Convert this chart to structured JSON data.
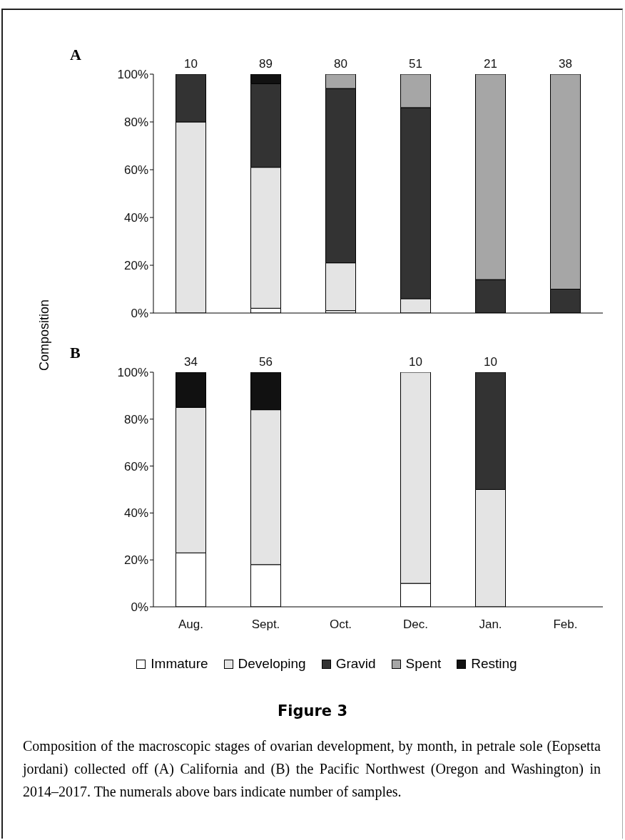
{
  "chart_data": [
    {
      "type": "bar",
      "title": "A",
      "ylabel": "Composition",
      "stacked": true,
      "categories": [
        "Aug.",
        "Sept.",
        "Oct.",
        "Dec.",
        "Jan.",
        "Feb."
      ],
      "tick_labels": "y",
      "grid": false,
      "ylim": [
        0,
        100
      ],
      "yticks": [
        {
          "value": 0,
          "label": "0%"
        },
        {
          "value": 20,
          "label": "20%"
        },
        {
          "value": 40,
          "label": "40%"
        },
        {
          "value": 60,
          "label": "60%"
        },
        {
          "value": 80,
          "label": "80%"
        },
        {
          "value": 100,
          "label": "100%"
        }
      ],
      "annotations": [
        {
          "text": "10",
          "x": "Aug.",
          "y": 100
        },
        {
          "text": "89",
          "x": "Sept.",
          "y": 100
        },
        {
          "text": "80",
          "x": "Oct.",
          "y": 100
        },
        {
          "text": "51",
          "x": "Dec.",
          "y": 100
        },
        {
          "text": "21",
          "x": "Jan.",
          "y": 100
        },
        {
          "text": "38",
          "x": "Feb.",
          "y": 100
        }
      ],
      "series": [
        {
          "color": "#ffffff",
          "values": [
            0,
            2,
            1,
            0,
            0,
            0
          ]
        },
        {
          "color": "#e4e4e4",
          "values": [
            80,
            59,
            20,
            6,
            0,
            0
          ]
        },
        {
          "color": "#333333",
          "values": [
            20,
            35,
            73,
            80,
            14,
            10
          ]
        },
        {
          "color": "#a6a6a6",
          "values": [
            0,
            0,
            6,
            14,
            86,
            90
          ]
        },
        {
          "color": "#111111",
          "values": [
            0,
            4,
            0,
            0,
            0,
            0
          ]
        }
      ]
    },
    {
      "type": "bar",
      "title": "B",
      "stacked": true,
      "categories": [
        "Aug.",
        "Sept.",
        "Oct.",
        "Dec.",
        "Jan.",
        "Feb."
      ],
      "grid": false,
      "legend": "bottom",
      "ylim": [
        0,
        100
      ],
      "yticks": [
        {
          "value": 0,
          "label": "0%"
        },
        {
          "value": 20,
          "label": "20%"
        },
        {
          "value": 40,
          "label": "40%"
        },
        {
          "value": 60,
          "label": "60%"
        },
        {
          "value": 80,
          "label": "80%"
        },
        {
          "value": 100,
          "label": "100%"
        }
      ],
      "annotations": [
        {
          "text": "34",
          "x": "Aug.",
          "y": 100
        },
        {
          "text": "56",
          "x": "Sept.",
          "y": 100
        },
        {
          "text": "10",
          "x": "Dec.",
          "y": 100
        },
        {
          "text": "10",
          "x": "Jan.",
          "y": 100
        },
        "Figure 3",
        "Composition of the macroscopic stages of ovarian development, by month, in petrale sole (Eopsetta jordani) collected off (A) California and (B) the Pacific Northwest (Oregon and Washington) in 2014–2017. The numerals above bars indicate number of samples."
      ],
      "series": [
        {
          "name": "Immature",
          "color": "#ffffff",
          "values": [
            23,
            18,
            null,
            10,
            0,
            null
          ]
        },
        {
          "name": "Developing",
          "color": "#e4e4e4",
          "values": [
            62,
            66,
            null,
            90,
            50,
            null
          ]
        },
        {
          "name": "Gravid",
          "color": "#333333",
          "values": [
            0,
            0,
            null,
            0,
            50,
            null
          ]
        },
        {
          "name": "Spent",
          "color": "#a6a6a6",
          "values": [
            0,
            0,
            null,
            0,
            0,
            null
          ]
        },
        {
          "name": "Resting",
          "color": "#111111",
          "values": [
            15,
            16,
            null,
            0,
            0,
            null
          ]
        }
      ]
    }
  ]
}
